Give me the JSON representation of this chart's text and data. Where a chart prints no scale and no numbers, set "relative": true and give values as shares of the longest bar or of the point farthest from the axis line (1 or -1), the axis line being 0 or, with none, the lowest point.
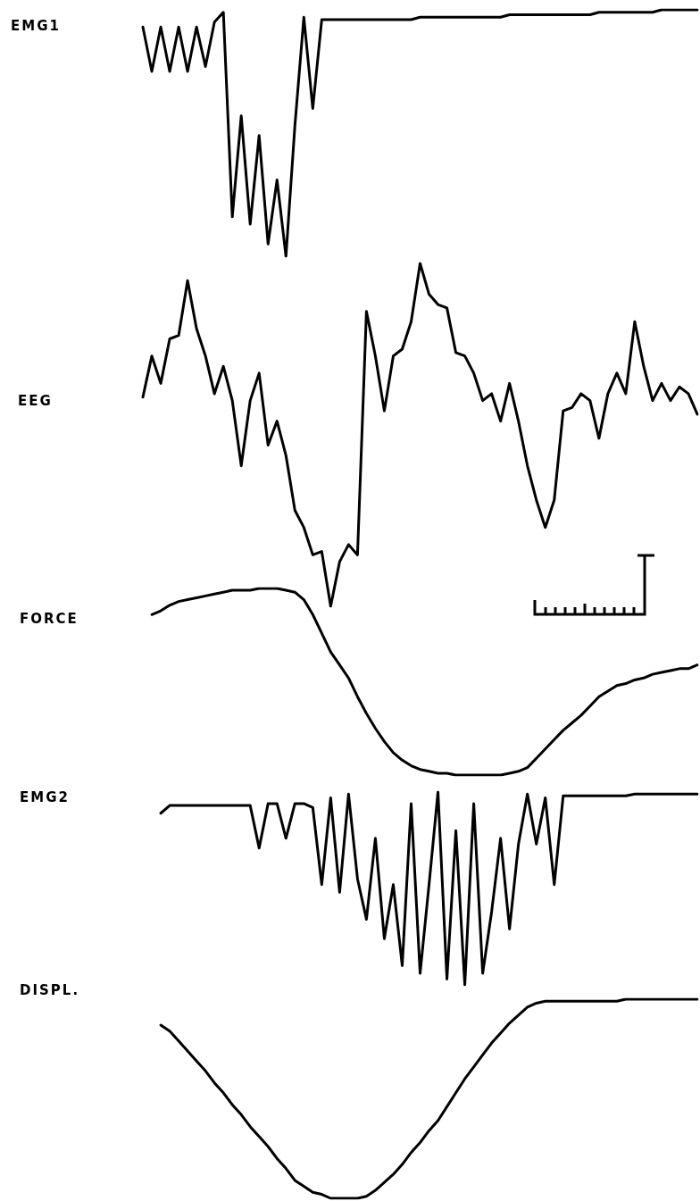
{
  "chart_data": [
    {
      "type": "line",
      "ylabel": "EMG1",
      "relative": true,
      "color": "#000000",
      "categories": [
        null,
        null,
        null,
        null,
        null,
        null,
        null,
        null,
        null,
        null,
        null,
        null,
        null,
        null,
        null,
        null,
        null,
        null,
        null,
        null,
        null,
        null,
        null,
        null,
        null,
        null,
        null,
        null,
        null,
        null,
        null,
        null,
        null,
        null,
        null,
        null,
        null,
        null,
        null,
        null,
        null,
        null,
        null,
        null,
        null,
        null,
        null,
        null,
        null,
        null,
        null,
        null,
        null,
        null,
        null,
        null,
        null,
        null,
        null,
        null,
        null,
        null,
        null,
        null
      ],
      "values": [
        null,
        0.93,
        0.75,
        0.93,
        0.75,
        0.93,
        0.75,
        0.93,
        0.77,
        0.95,
        0.99,
        0.16,
        0.57,
        0.13,
        0.49,
        0.05,
        0.31,
        0,
        0.53,
        0.97,
        0.6,
        0.96,
        0.96,
        0.96,
        0.96,
        0.96,
        0.96,
        0.96,
        0.96,
        0.96,
        0.96,
        0.96,
        0.97,
        0.97,
        0.97,
        0.97,
        0.97,
        0.97,
        0.97,
        0.97,
        0.97,
        0.97,
        0.98,
        0.98,
        0.98,
        0.98,
        0.98,
        0.98,
        0.98,
        0.98,
        0.98,
        0.98,
        0.99,
        0.99,
        0.99,
        0.99,
        0.99,
        0.99,
        0.99,
        1,
        1,
        1,
        1,
        1
      ]
    },
    {
      "type": "line",
      "ylabel": "EEG",
      "relative": true,
      "color": "#000000",
      "categories": [
        null,
        null,
        null,
        null,
        null,
        null,
        null,
        null,
        null,
        null,
        null,
        null,
        null,
        null,
        null,
        null,
        null,
        null,
        null,
        null,
        null,
        null,
        null,
        null,
        null,
        null,
        null,
        null,
        null,
        null,
        null,
        null,
        null,
        null,
        null,
        null,
        null,
        null,
        null,
        null,
        null,
        null,
        null,
        null,
        null,
        null,
        null,
        null,
        null,
        null,
        null,
        null,
        null,
        null,
        null,
        null,
        null,
        null,
        null,
        null,
        null,
        null,
        null,
        null
      ],
      "values": [
        null,
        0.61,
        0.73,
        0.65,
        0.78,
        0.79,
        0.95,
        0.81,
        0.73,
        0.62,
        0.7,
        0.6,
        0.41,
        0.6,
        0.68,
        0.47,
        0.54,
        0.44,
        0.28,
        0.23,
        0.15,
        0.16,
        0,
        0.13,
        0.18,
        0.15,
        0.86,
        0.73,
        0.57,
        0.73,
        0.75,
        0.83,
        1,
        0.91,
        0.88,
        0.87,
        0.74,
        0.73,
        0.68,
        0.6,
        0.62,
        0.54,
        0.65,
        0.54,
        0.41,
        0.31,
        0.23,
        0.31,
        0.57,
        0.58,
        0.62,
        0.6,
        0.49,
        0.62,
        0.68,
        0.62,
        0.83,
        0.7,
        0.6,
        0.65,
        0.6,
        0.64,
        0.62,
        0.56
      ]
    },
    {
      "type": "line",
      "ylabel": "FORCE",
      "relative": true,
      "color": "#000000",
      "categories": [
        null,
        null,
        null,
        null,
        null,
        null,
        null,
        null,
        null,
        null,
        null,
        null,
        null,
        null,
        null,
        null,
        null,
        null,
        null,
        null,
        null,
        null,
        null,
        null,
        null,
        null,
        null,
        null,
        null,
        null,
        null,
        null,
        null,
        null,
        null,
        null,
        null,
        null,
        null,
        null,
        null,
        null,
        null,
        null,
        null,
        null,
        null,
        null,
        null,
        null,
        null,
        null,
        null,
        null,
        null,
        null,
        null,
        null,
        null,
        null,
        null,
        null,
        null,
        null
      ],
      "values": [
        null,
        null,
        0.86,
        0.88,
        0.91,
        0.93,
        0.94,
        0.95,
        0.96,
        0.97,
        0.98,
        0.99,
        0.99,
        0.99,
        1,
        1,
        1,
        0.99,
        0.98,
        0.94,
        0.86,
        0.76,
        0.66,
        0.59,
        0.52,
        0.42,
        0.33,
        0.25,
        0.18,
        0.12,
        0.08,
        0.05,
        0.03,
        0.02,
        0.01,
        0.01,
        0,
        0,
        0,
        0,
        0,
        0,
        0.01,
        0.02,
        0.04,
        0.09,
        0.14,
        0.19,
        0.24,
        0.28,
        0.32,
        0.37,
        0.42,
        0.45,
        0.48,
        0.49,
        0.51,
        0.52,
        0.54,
        0.55,
        0.56,
        0.57,
        0.57,
        0.59
      ]
    },
    {
      "type": "line",
      "ylabel": "EMG2",
      "relative": true,
      "color": "#000000",
      "categories": [
        null,
        null,
        null,
        null,
        null,
        null,
        null,
        null,
        null,
        null,
        null,
        null,
        null,
        null,
        null,
        null,
        null,
        null,
        null,
        null,
        null,
        null,
        null,
        null,
        null,
        null,
        null,
        null,
        null,
        null,
        null,
        null,
        null,
        null,
        null,
        null,
        null,
        null,
        null,
        null,
        null,
        null,
        null,
        null,
        null,
        null,
        null,
        null,
        null,
        null,
        null,
        null,
        null,
        null,
        null,
        null,
        null,
        null,
        null,
        null,
        null,
        null,
        null,
        null
      ],
      "values": [
        null,
        null,
        null,
        0.89,
        0.93,
        0.93,
        0.93,
        0.93,
        0.93,
        0.93,
        0.93,
        0.93,
        0.93,
        0.93,
        0.71,
        0.94,
        0.94,
        0.76,
        0.94,
        0.94,
        0.92,
        0.52,
        0.97,
        0.48,
        0.99,
        0.55,
        0.34,
        0.76,
        0.24,
        0.52,
        0.1,
        0.94,
        0.06,
        0.52,
        1,
        0.03,
        0.8,
        0,
        0.94,
        0.06,
        0.38,
        0.76,
        0.29,
        0.73,
        0.99,
        0.73,
        0.97,
        0.52,
        0.98,
        0.98,
        0.98,
        0.98,
        0.98,
        0.98,
        0.98,
        0.98,
        0.99,
        0.99,
        0.99,
        0.99,
        0.99,
        0.99,
        0.99,
        0.99
      ]
    },
    {
      "type": "line",
      "ylabel": "DISPL.",
      "relative": true,
      "color": "#000000",
      "categories": [
        null,
        null,
        null,
        null,
        null,
        null,
        null,
        null,
        null,
        null,
        null,
        null,
        null,
        null,
        null,
        null,
        null,
        null,
        null,
        null,
        null,
        null,
        null,
        null,
        null,
        null,
        null,
        null,
        null,
        null,
        null,
        null,
        null,
        null,
        null,
        null,
        null,
        null,
        null,
        null,
        null,
        null,
        null,
        null,
        null,
        null,
        null,
        null,
        null,
        null,
        null,
        null,
        null,
        null,
        null,
        null,
        null,
        null,
        null,
        null,
        null,
        null,
        null,
        null
      ],
      "values": [
        null,
        null,
        null,
        0.87,
        0.84,
        0.79,
        0.74,
        0.69,
        0.64,
        0.58,
        0.53,
        0.47,
        0.42,
        0.36,
        0.31,
        0.26,
        0.2,
        0.15,
        0.09,
        0.06,
        0.03,
        0.02,
        0,
        0,
        0,
        0,
        0.01,
        0.04,
        0.08,
        0.12,
        0.17,
        0.23,
        0.28,
        0.34,
        0.39,
        0.46,
        0.53,
        0.6,
        0.66,
        0.72,
        0.78,
        0.83,
        0.88,
        0.92,
        0.96,
        0.98,
        0.99,
        0.99,
        0.99,
        0.99,
        0.99,
        0.99,
        0.99,
        0.99,
        0.99,
        1,
        1,
        1,
        1,
        1,
        1,
        1,
        1,
        1
      ]
    }
  ]
}
